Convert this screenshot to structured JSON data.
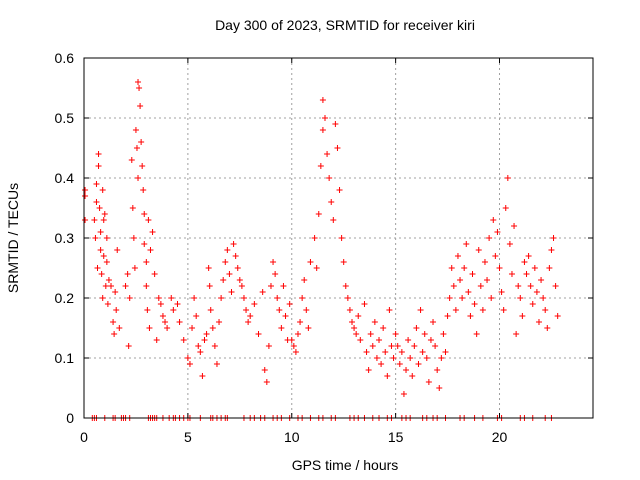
{
  "chart_data": {
    "type": "scatter",
    "title": "Day 300 of 2023, SRMTID for receiver kiri",
    "xlabel": "GPS time / hours",
    "ylabel": "SRMTID / TECUs",
    "xlim": [
      0,
      24.5
    ],
    "ylim": [
      0,
      0.6
    ],
    "x_ticks": [
      0,
      5,
      10,
      15,
      20
    ],
    "y_ticks": [
      0,
      0.1,
      0.2,
      0.3,
      0.4,
      0.5,
      0.6
    ],
    "x_tick_labels": [
      "0",
      "5",
      "10",
      "15",
      "20"
    ],
    "y_tick_labels": [
      "0",
      "0.1",
      "0.2",
      "0.3",
      "0.4",
      "0.5",
      "0.6"
    ],
    "grid": true,
    "marker": "plus",
    "marker_color": "#ff0000",
    "series": [
      {
        "name": "SRMTID",
        "points": [
          [
            0.05,
            0.38
          ],
          [
            0.05,
            0.37
          ],
          [
            0.05,
            0.33
          ],
          [
            0.5,
            0.33
          ],
          [
            0.55,
            0.3
          ],
          [
            0.6,
            0.36
          ],
          [
            0.6,
            0.39
          ],
          [
            0.65,
            0.25
          ],
          [
            0.7,
            0.42
          ],
          [
            0.7,
            0.44
          ],
          [
            0.75,
            0.35
          ],
          [
            0.8,
            0.28
          ],
          [
            0.8,
            0.31
          ],
          [
            0.85,
            0.24
          ],
          [
            0.9,
            0.38
          ],
          [
            0.9,
            0.2
          ],
          [
            0.95,
            0.33
          ],
          [
            0.95,
            0.27
          ],
          [
            1.0,
            0.34
          ],
          [
            1.05,
            0.22
          ],
          [
            1.1,
            0.26
          ],
          [
            1.1,
            0.3
          ],
          [
            1.15,
            0.19
          ],
          [
            1.2,
            0.23
          ],
          [
            1.3,
            0.22
          ],
          [
            1.4,
            0.16
          ],
          [
            1.45,
            0.14
          ],
          [
            1.5,
            0.21
          ],
          [
            1.55,
            0.18
          ],
          [
            1.6,
            0.28
          ],
          [
            1.7,
            0.15
          ],
          [
            2.0,
            0.22
          ],
          [
            2.1,
            0.24
          ],
          [
            2.15,
            0.12
          ],
          [
            2.2,
            0.2
          ],
          [
            2.3,
            0.43
          ],
          [
            2.35,
            0.35
          ],
          [
            2.4,
            0.3
          ],
          [
            2.45,
            0.25
          ],
          [
            2.5,
            0.48
          ],
          [
            2.55,
            0.45
          ],
          [
            2.6,
            0.4
          ],
          [
            2.6,
            0.56
          ],
          [
            2.65,
            0.55
          ],
          [
            2.7,
            0.52
          ],
          [
            2.75,
            0.46
          ],
          [
            2.8,
            0.42
          ],
          [
            2.85,
            0.38
          ],
          [
            2.9,
            0.34
          ],
          [
            2.9,
            0.29
          ],
          [
            3.0,
            0.26
          ],
          [
            3.0,
            0.22
          ],
          [
            3.05,
            0.18
          ],
          [
            3.1,
            0.33
          ],
          [
            3.15,
            0.15
          ],
          [
            3.2,
            0.28
          ],
          [
            3.3,
            0.31
          ],
          [
            3.4,
            0.24
          ],
          [
            3.5,
            0.13
          ],
          [
            3.6,
            0.2
          ],
          [
            3.7,
            0.19
          ],
          [
            3.8,
            0.17
          ],
          [
            3.9,
            0.16
          ],
          [
            4.0,
            0.15
          ],
          [
            4.2,
            0.2
          ],
          [
            4.3,
            0.18
          ],
          [
            4.5,
            0.19
          ],
          [
            4.6,
            0.16
          ],
          [
            4.8,
            0.13
          ],
          [
            5.0,
            0.1
          ],
          [
            5.1,
            0.09
          ],
          [
            5.2,
            0.15
          ],
          [
            5.3,
            0.2
          ],
          [
            5.4,
            0.17
          ],
          [
            5.5,
            0.12
          ],
          [
            5.6,
            0.11
          ],
          [
            5.7,
            0.07
          ],
          [
            5.8,
            0.13
          ],
          [
            5.9,
            0.14
          ],
          [
            6.0,
            0.25
          ],
          [
            6.05,
            0.22
          ],
          [
            6.1,
            0.18
          ],
          [
            6.2,
            0.15
          ],
          [
            6.3,
            0.12
          ],
          [
            6.4,
            0.09
          ],
          [
            6.5,
            0.16
          ],
          [
            6.6,
            0.2
          ],
          [
            6.7,
            0.23
          ],
          [
            6.8,
            0.26
          ],
          [
            6.9,
            0.28
          ],
          [
            7.0,
            0.24
          ],
          [
            7.1,
            0.21
          ],
          [
            7.2,
            0.29
          ],
          [
            7.3,
            0.27
          ],
          [
            7.4,
            0.25
          ],
          [
            7.5,
            0.23
          ],
          [
            7.6,
            0.22
          ],
          [
            7.7,
            0.2
          ],
          [
            7.8,
            0.18
          ],
          [
            7.9,
            0.16
          ],
          [
            8.0,
            0.17
          ],
          [
            8.2,
            0.19
          ],
          [
            8.4,
            0.14
          ],
          [
            8.6,
            0.21
          ],
          [
            8.7,
            0.08
          ],
          [
            8.8,
            0.06
          ],
          [
            8.9,
            0.12
          ],
          [
            9.0,
            0.22
          ],
          [
            9.1,
            0.26
          ],
          [
            9.2,
            0.24
          ],
          [
            9.3,
            0.2
          ],
          [
            9.4,
            0.18
          ],
          [
            9.5,
            0.15
          ],
          [
            9.6,
            0.22
          ],
          [
            9.7,
            0.17
          ],
          [
            9.8,
            0.13
          ],
          [
            9.9,
            0.19
          ],
          [
            10.0,
            0.13
          ],
          [
            10.1,
            0.12
          ],
          [
            10.2,
            0.11
          ],
          [
            10.3,
            0.14
          ],
          [
            10.4,
            0.16
          ],
          [
            10.5,
            0.2
          ],
          [
            10.6,
            0.23
          ],
          [
            10.7,
            0.18
          ],
          [
            10.8,
            0.15
          ],
          [
            10.9,
            0.26
          ],
          [
            11.1,
            0.3
          ],
          [
            11.2,
            0.25
          ],
          [
            11.3,
            0.34
          ],
          [
            11.4,
            0.42
          ],
          [
            11.5,
            0.48
          ],
          [
            11.5,
            0.53
          ],
          [
            11.6,
            0.5
          ],
          [
            11.7,
            0.44
          ],
          [
            11.8,
            0.4
          ],
          [
            11.9,
            0.36
          ],
          [
            12.0,
            0.33
          ],
          [
            12.1,
            0.49
          ],
          [
            12.2,
            0.45
          ],
          [
            12.3,
            0.38
          ],
          [
            12.4,
            0.3
          ],
          [
            12.5,
            0.26
          ],
          [
            12.6,
            0.22
          ],
          [
            12.7,
            0.2
          ],
          [
            12.8,
            0.18
          ],
          [
            12.9,
            0.16
          ],
          [
            13.0,
            0.15
          ],
          [
            13.1,
            0.14
          ],
          [
            13.2,
            0.17
          ],
          [
            13.3,
            0.13
          ],
          [
            13.5,
            0.19
          ],
          [
            13.6,
            0.11
          ],
          [
            13.7,
            0.08
          ],
          [
            13.8,
            0.14
          ],
          [
            13.9,
            0.12
          ],
          [
            14.0,
            0.16
          ],
          [
            14.1,
            0.1
          ],
          [
            14.2,
            0.13
          ],
          [
            14.3,
            0.09
          ],
          [
            14.4,
            0.15
          ],
          [
            14.5,
            0.11
          ],
          [
            14.6,
            0.07
          ],
          [
            14.7,
            0.18
          ],
          [
            14.8,
            0.12
          ],
          [
            14.9,
            0.1
          ],
          [
            15.0,
            0.14
          ],
          [
            15.1,
            0.12
          ],
          [
            15.2,
            0.09
          ],
          [
            15.3,
            0.11
          ],
          [
            15.4,
            0.04
          ],
          [
            15.5,
            0.08
          ],
          [
            15.6,
            0.13
          ],
          [
            15.7,
            0.1
          ],
          [
            15.8,
            0.07
          ],
          [
            15.9,
            0.12
          ],
          [
            16.0,
            0.15
          ],
          [
            16.1,
            0.09
          ],
          [
            16.2,
            0.18
          ],
          [
            16.3,
            0.11
          ],
          [
            16.4,
            0.14
          ],
          [
            16.5,
            0.1
          ],
          [
            16.6,
            0.06
          ],
          [
            16.7,
            0.13
          ],
          [
            16.8,
            0.16
          ],
          [
            16.9,
            0.12
          ],
          [
            17.0,
            0.08
          ],
          [
            17.1,
            0.05
          ],
          [
            17.2,
            0.1
          ],
          [
            17.3,
            0.14
          ],
          [
            17.4,
            0.11
          ],
          [
            17.5,
            0.17
          ],
          [
            17.6,
            0.2
          ],
          [
            17.7,
            0.25
          ],
          [
            17.8,
            0.22
          ],
          [
            17.9,
            0.18
          ],
          [
            18.0,
            0.27
          ],
          [
            18.1,
            0.23
          ],
          [
            18.2,
            0.2
          ],
          [
            18.3,
            0.25
          ],
          [
            18.4,
            0.29
          ],
          [
            18.5,
            0.21
          ],
          [
            18.6,
            0.17
          ],
          [
            18.7,
            0.24
          ],
          [
            18.8,
            0.19
          ],
          [
            18.9,
            0.14
          ],
          [
            19.0,
            0.28
          ],
          [
            19.1,
            0.22
          ],
          [
            19.2,
            0.18
          ],
          [
            19.3,
            0.26
          ],
          [
            19.4,
            0.23
          ],
          [
            19.5,
            0.3
          ],
          [
            19.6,
            0.2
          ],
          [
            19.7,
            0.33
          ],
          [
            19.8,
            0.27
          ],
          [
            19.9,
            0.31
          ],
          [
            20.0,
            0.25
          ],
          [
            20.1,
            0.21
          ],
          [
            20.2,
            0.18
          ],
          [
            20.3,
            0.35
          ],
          [
            20.4,
            0.4
          ],
          [
            20.5,
            0.29
          ],
          [
            20.6,
            0.24
          ],
          [
            20.7,
            0.32
          ],
          [
            20.8,
            0.14
          ],
          [
            20.9,
            0.22
          ],
          [
            21.0,
            0.2
          ],
          [
            21.1,
            0.17
          ],
          [
            21.2,
            0.26
          ],
          [
            21.3,
            0.24
          ],
          [
            21.4,
            0.27
          ],
          [
            21.5,
            0.22
          ],
          [
            21.6,
            0.19
          ],
          [
            21.7,
            0.25
          ],
          [
            21.8,
            0.21
          ],
          [
            21.9,
            0.16
          ],
          [
            22.0,
            0.23
          ],
          [
            22.1,
            0.2
          ],
          [
            22.2,
            0.18
          ],
          [
            22.3,
            0.15
          ],
          [
            22.4,
            0.25
          ],
          [
            22.5,
            0.28
          ],
          [
            22.6,
            0.3
          ],
          [
            22.7,
            0.22
          ],
          [
            22.8,
            0.17
          ]
        ]
      }
    ],
    "baseline_markers_x": [
      0.4,
      0.5,
      0.6,
      1.0,
      1.4,
      1.5,
      1.8,
      1.9,
      2.0,
      2.2,
      3.1,
      3.2,
      3.3,
      3.4,
      3.5,
      3.8,
      4.1,
      4.3,
      4.4,
      4.6,
      4.8,
      5.0,
      5.1,
      5.6,
      6.1,
      6.2,
      6.4,
      6.6,
      6.8,
      6.9,
      7.7,
      8.0,
      8.2,
      8.5,
      8.7,
      9.1,
      9.3,
      9.5,
      9.9,
      10.3,
      10.5,
      10.9,
      11.3,
      11.5,
      11.9,
      12.1,
      12.8,
      13.0,
      13.2,
      13.5,
      13.9,
      14.2,
      14.6,
      14.8,
      15.3,
      15.5,
      15.7,
      16.3,
      16.5,
      16.8,
      17.0,
      17.4,
      18.1,
      18.3,
      18.8,
      19.2,
      19.9,
      20.1,
      21.0,
      21.2,
      21.6,
      22.2,
      22.5
    ]
  }
}
